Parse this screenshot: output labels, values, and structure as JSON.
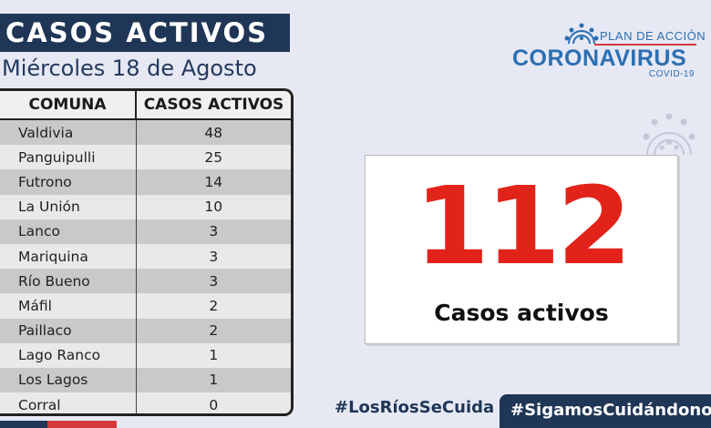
{
  "header": {
    "title": "CASOS ACTIVOS",
    "date": "Miércoles 18 de Agosto"
  },
  "table": {
    "col_comuna": "COMUNA",
    "col_casos": "CASOS ACTIVOS",
    "rows": [
      {
        "comuna": "Valdivia",
        "casos": "48"
      },
      {
        "comuna": "Panguipulli",
        "casos": "25"
      },
      {
        "comuna": "Futrono",
        "casos": "14"
      },
      {
        "comuna": "La Unión",
        "casos": "10"
      },
      {
        "comuna": "Lanco",
        "casos": "3"
      },
      {
        "comuna": "Mariquina",
        "casos": "3"
      },
      {
        "comuna": "Río Bueno",
        "casos": "3"
      },
      {
        "comuna": "Máfil",
        "casos": "2"
      },
      {
        "comuna": "Paillaco",
        "casos": "2"
      },
      {
        "comuna": "Lago Ranco",
        "casos": "1"
      },
      {
        "comuna": "Los Lagos",
        "casos": "1"
      },
      {
        "comuna": "Corral",
        "casos": "0"
      }
    ]
  },
  "logo": {
    "plan": "PLAN DE ACCIÓN",
    "name": "CORONAVIRUS",
    "sub": "COVID-19",
    "icon": "virus-icon"
  },
  "total": {
    "value": "112",
    "label": "Casos activos"
  },
  "footer": {
    "hashtag1": "#LosRíosSeCuida",
    "hashtag2": "#SigamosCuidándonos"
  },
  "colors": {
    "navy": "#1f3656",
    "red": "#e2231a",
    "blue": "#2b6fb2",
    "background": "#e6e8f3"
  }
}
